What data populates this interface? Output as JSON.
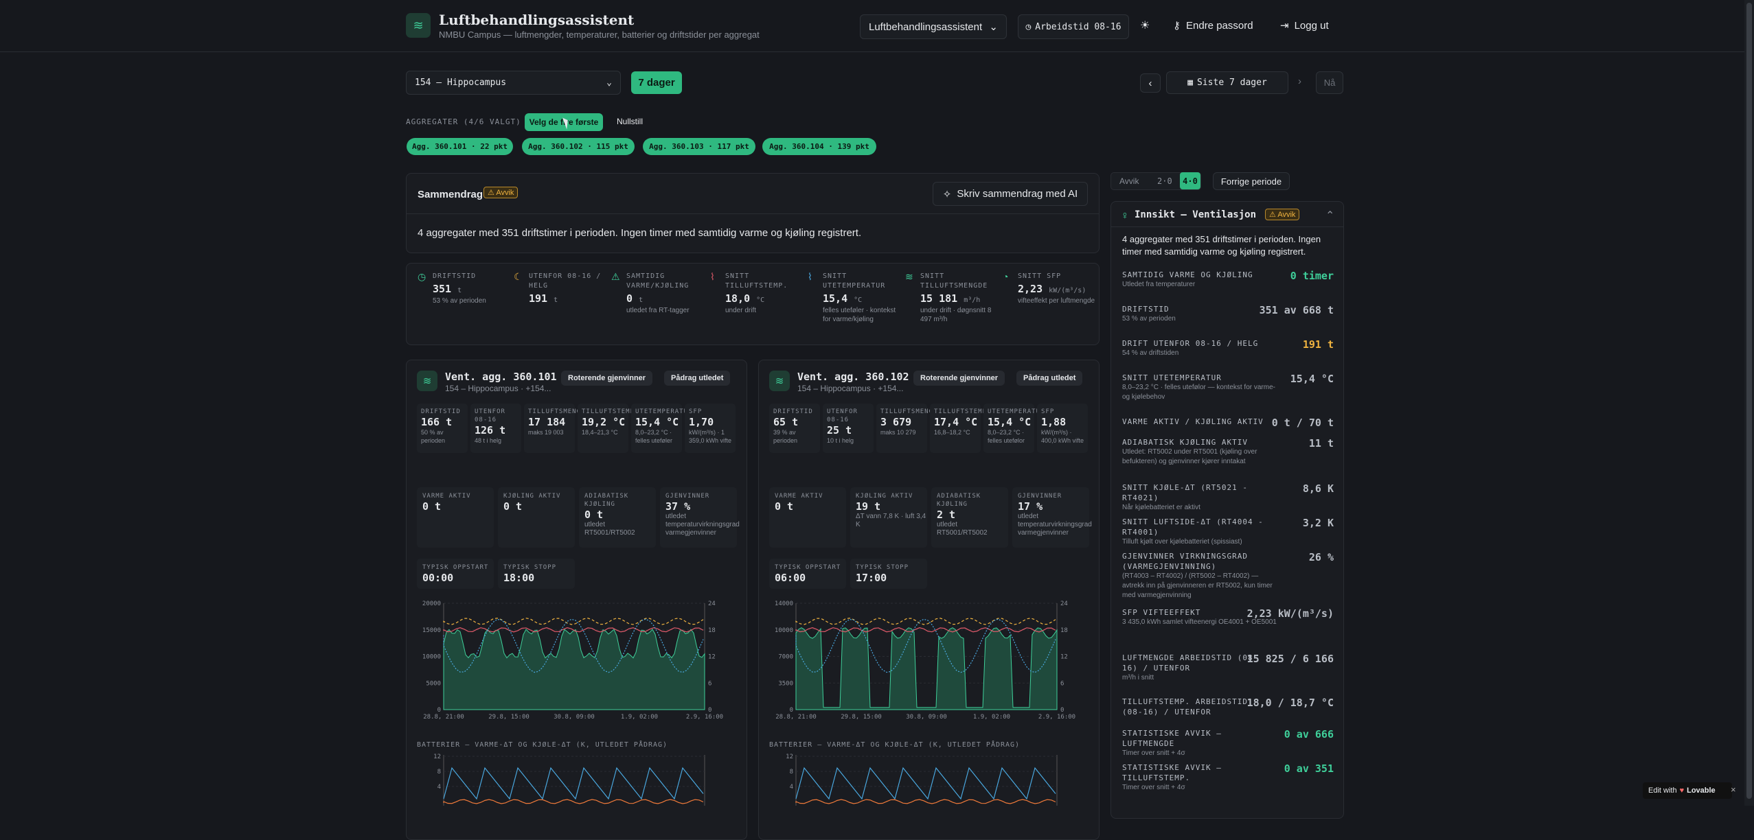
{
  "header": {
    "title": "Luftbehandlingsassistent",
    "subtitle": "NMBU Campus — luftmengder, temperaturer, batterier og driftstider per aggregat",
    "app_select": "Luftbehandlingsassistent",
    "worktime": "Arbeidstid 08-16",
    "change_pw": "Endre passord",
    "logout": "Logg ut"
  },
  "toolbar": {
    "site": "154 – Hippocampus",
    "days_btn": "7 dager",
    "range": "Siste 7 dager",
    "now": "Nå"
  },
  "aggregates": {
    "label": "AGGREGATER (4/6 VALGT)",
    "choose": "Velg de fire første",
    "reset": "Nullstill",
    "chips": [
      "Agg. 360.101 · 22 pkt",
      "Agg. 360.102 · 115 pkt",
      "Agg. 360.103 · 117 pkt",
      "Agg. 360.104 · 139 pkt"
    ]
  },
  "summary": {
    "title": "Sammendrag",
    "badge": "Avvik",
    "ai_btn": "Skriv sammendrag med AI",
    "text": "4 aggregater med 351 driftstimer i perioden. Ingen timer med samtidig varme og kjøling registrert."
  },
  "kpis": [
    {
      "label": "DRIFTSTID",
      "value": "351",
      "unit": "t",
      "sub": "53 % av perioden",
      "color": "#3fcf9a"
    },
    {
      "label": "UTENFOR 08-16 / HELG",
      "value": "191",
      "unit": "t",
      "sub": "",
      "color": "#f0b340"
    },
    {
      "label": "SAMTIDIG VARME/KJØLING",
      "value": "0",
      "unit": "t",
      "sub": "utledet fra RT-tagger",
      "color": "#3fcf9a"
    },
    {
      "label": "SNITT TILLUFTSTEMP.",
      "value": "18,0",
      "unit": "°C",
      "sub": "under drift",
      "color": "#e05a6a"
    },
    {
      "label": "SNITT UTETEMPERATUR",
      "value": "15,4",
      "unit": "°C",
      "sub": "felles uteføler · kontekst for varme/kjøling",
      "color": "#4aa8e0"
    },
    {
      "label": "SNITT TILLUFTSMENGDE",
      "value": "15 181",
      "unit": "m³/h",
      "sub": "under drift · døgnsnitt 8 497 m³/h",
      "color": "#3fcf9a"
    },
    {
      "label": "SNITT SFP",
      "value": "2,23",
      "unit": "kW/(m³/s)",
      "sub": "vifteeffekt per luftmengde",
      "color": "#3fcf9a"
    }
  ],
  "units": [
    {
      "name": "Vent. agg. 360.101",
      "loc": "154 – Hippocampus · +154...",
      "tag1": "Roterende gjenvinner",
      "tag2": "Pådrag utledet",
      "minis": [
        {
          "l": "DRIFTSTID",
          "v": "166 t",
          "s": "50 % av perioden"
        },
        {
          "l": "UTENFOR 08-16",
          "v": "126 t",
          "s": "48 t i helg"
        },
        {
          "l": "TILLUFTSMENGDE",
          "v": "17 184",
          "s": "maks 19 003"
        },
        {
          "l": "TILLUFTSTEMP.",
          "v": "19,2 °C",
          "s": "18,4–21,3 °C"
        },
        {
          "l": "UTETEMPERATUR",
          "v": "15,4 °C",
          "s": "8,0–23,2 °C · felles uteføler"
        },
        {
          "l": "SFP",
          "v": "1,70",
          "s": "kW/(m³/s) · 1 359,0 kWh vifte"
        }
      ],
      "stats": [
        {
          "l": "VARME AKTIV",
          "v": "0 t",
          "s": ""
        },
        {
          "l": "KJØLING AKTIV",
          "v": "0 t",
          "s": ""
        },
        {
          "l": "ADIABATISK KJØLING",
          "v": "0 t",
          "s": "utledet RT5001/RT5002"
        },
        {
          "l": "GJENVINNER",
          "v": "37 %",
          "s": "utledet temperaturvirkningsgrad varmegjenvinner"
        }
      ],
      "start": {
        "l": "TYPISK OPPSTART",
        "v": "00:00"
      },
      "stop": {
        "l": "TYPISK STOPP",
        "v": "18:00"
      },
      "yleft": [
        "20000",
        "15000",
        "10000",
        "5000",
        "0"
      ],
      "yright": [
        "24",
        "18",
        "12",
        "6",
        "0"
      ],
      "xt": [
        "28.8, 21:00",
        "29.8, 15:00",
        "30.8, 09:00",
        "1.9, 02:00",
        "2.9, 16:00"
      ],
      "bat_title": "BATTERIER – VARME-ΔT OG KJØLE-ΔT (K, UTLEDET PÅDRAG)",
      "bat_y": [
        "12",
        "8",
        "4"
      ]
    },
    {
      "name": "Vent. agg. 360.102",
      "loc": "154 – Hippocampus · +154...",
      "tag1": "Roterende gjenvinner",
      "tag2": "Pådrag utledet",
      "minis": [
        {
          "l": "DRIFTSTID",
          "v": "65 t",
          "s": "39 % av perioden"
        },
        {
          "l": "UTENFOR 08-16",
          "v": "25 t",
          "s": "10 t i helg"
        },
        {
          "l": "TILLUFTSMENGDE",
          "v": "3 679",
          "s": "maks 10 279"
        },
        {
          "l": "TILLUFTSTEMP.",
          "v": "17,4 °C",
          "s": "16,8–18,2 °C"
        },
        {
          "l": "UTETEMPERATUR",
          "v": "15,4 °C",
          "s": "8,0–23,2 °C · felles utefølor"
        },
        {
          "l": "SFP",
          "v": "1,88",
          "s": "kW/(m³/s) · 400,0 kWh vifte"
        }
      ],
      "stats": [
        {
          "l": "VARME AKTIV",
          "v": "0 t",
          "s": ""
        },
        {
          "l": "KJØLING AKTIV",
          "v": "19 t",
          "s": "ΔT vann 7,8 K · luft 3,4 K"
        },
        {
          "l": "ADIABATISK KJØLING",
          "v": "2 t",
          "s": "utledet RT5001/RT5002"
        },
        {
          "l": "GJENVINNER",
          "v": "17 %",
          "s": "utledet temperaturvirkningsgrad varmegjenvinner"
        }
      ],
      "start": {
        "l": "TYPISK OPPSTART",
        "v": "06:00"
      },
      "stop": {
        "l": "TYPISK STOPP",
        "v": "17:00"
      },
      "yleft": [
        "14000",
        "10000",
        "7000",
        "3500",
        "0"
      ],
      "yright": [
        "24",
        "18",
        "12",
        "6",
        "0"
      ],
      "xt": [
        "28.8, 21:00",
        "29.8, 15:00",
        "30.8, 09:00",
        "1.9, 02:00",
        "2.9, 16:00"
      ],
      "bat_title": "BATTERIER – VARME-ΔT OG KJØLE-ΔT (K, UTLEDET PÅDRAG)",
      "bat_y": [
        "12",
        "8",
        "4"
      ]
    }
  ],
  "insight": {
    "tabs": [
      "Avvik",
      "2·0",
      "4·0"
    ],
    "prev": "Forrige periode",
    "title": "Innsikt – Ventilasjon",
    "badge": "Avvik",
    "intro": "4 aggregater med 351 driftstimer i perioden. Ingen timer med samtidig varme og kjøling registrert.",
    "rows": [
      {
        "k": "SAMTIDIG VARME OG KJØLING",
        "d": "Utledet fra temperaturer",
        "v": "0 timer",
        "c": "#3fcf9a"
      },
      {
        "k": "DRIFTSTID",
        "d": "53 % av perioden",
        "v": "351 av 668 t",
        "c": "#b9bec6"
      },
      {
        "k": "DRIFT UTENFOR 08-16 / HELG",
        "d": "54 % av driftstiden",
        "v": "191 t",
        "c": "#f0b340"
      },
      {
        "k": "SNITT UTETEMPERATUR",
        "d": "8,0–23,2 °C · felles utefølor — kontekst for varme- og kjølebehov",
        "v": "15,4 °C",
        "c": "#b9bec6"
      },
      {
        "k": "VARME AKTIV / KJØLING AKTIV",
        "d": "",
        "v": "0 t / 70 t",
        "c": "#b9bec6"
      },
      {
        "k": "ADIABATISK KJØLING AKTIV",
        "d": "Utledet: RT5002 under RT5001 (kjøling over befukteren) og gjenvinner kjører inntakat",
        "v": "11 t",
        "c": "#b9bec6"
      },
      {
        "k": "SNITT KJØLE-ΔT (RT5021 - RT4021)",
        "d": "Når kjølebatteriet er aktivt",
        "v": "8,6 K",
        "c": "#b9bec6"
      },
      {
        "k": "SNITT LUFTSIDE-ΔT (RT4004 - RT4001)",
        "d": "Tilluft kjølt over kjølebatteriet (spissiast)",
        "v": "3,2 K",
        "c": "#b9bec6"
      },
      {
        "k": "GJENVINNER VIRKNINGSGRAD (VARMEGJENVINNING)",
        "d": "(RT4003 – RT4002) / (RT5002 – RT4002) — avtrekk inn på gjenvinneren er RT5002, kun timer med varmegjenvinning",
        "v": "26 %",
        "c": "#b9bec6"
      },
      {
        "k": "SFP VIFTEEFFEKT",
        "d": "3 435,0 kWh samlet vifteenergi OE4001 + OE5001",
        "v": "2,23 kW/(m³/s)",
        "c": "#b9bec6"
      },
      {
        "k": "LUFTMENGDE ARBEIDSTID (08-16) / UTENFOR",
        "d": "m³/h i snitt",
        "v": "15 825 / 6 166",
        "c": "#b9bec6"
      },
      {
        "k": "TILLUFTSTEMP. ARBEIDSTID (08-16) / UTENFOR",
        "d": "",
        "v": "18,0 / 18,7 °C",
        "c": "#b9bec6"
      },
      {
        "k": "STATISTISKE AVVIK – LUFTMENGDE",
        "d": "Timer over snitt + 4σ",
        "v": "0 av 666",
        "c": "#3fcf9a"
      },
      {
        "k": "STATISTISKE AVVIK – TILLUFTSTEMP.",
        "d": "Timer over snitt + 4σ",
        "v": "0 av 351",
        "c": "#3fcf9a"
      }
    ]
  },
  "footer": {
    "edit": "Edit with",
    "brand": "Lovable"
  }
}
